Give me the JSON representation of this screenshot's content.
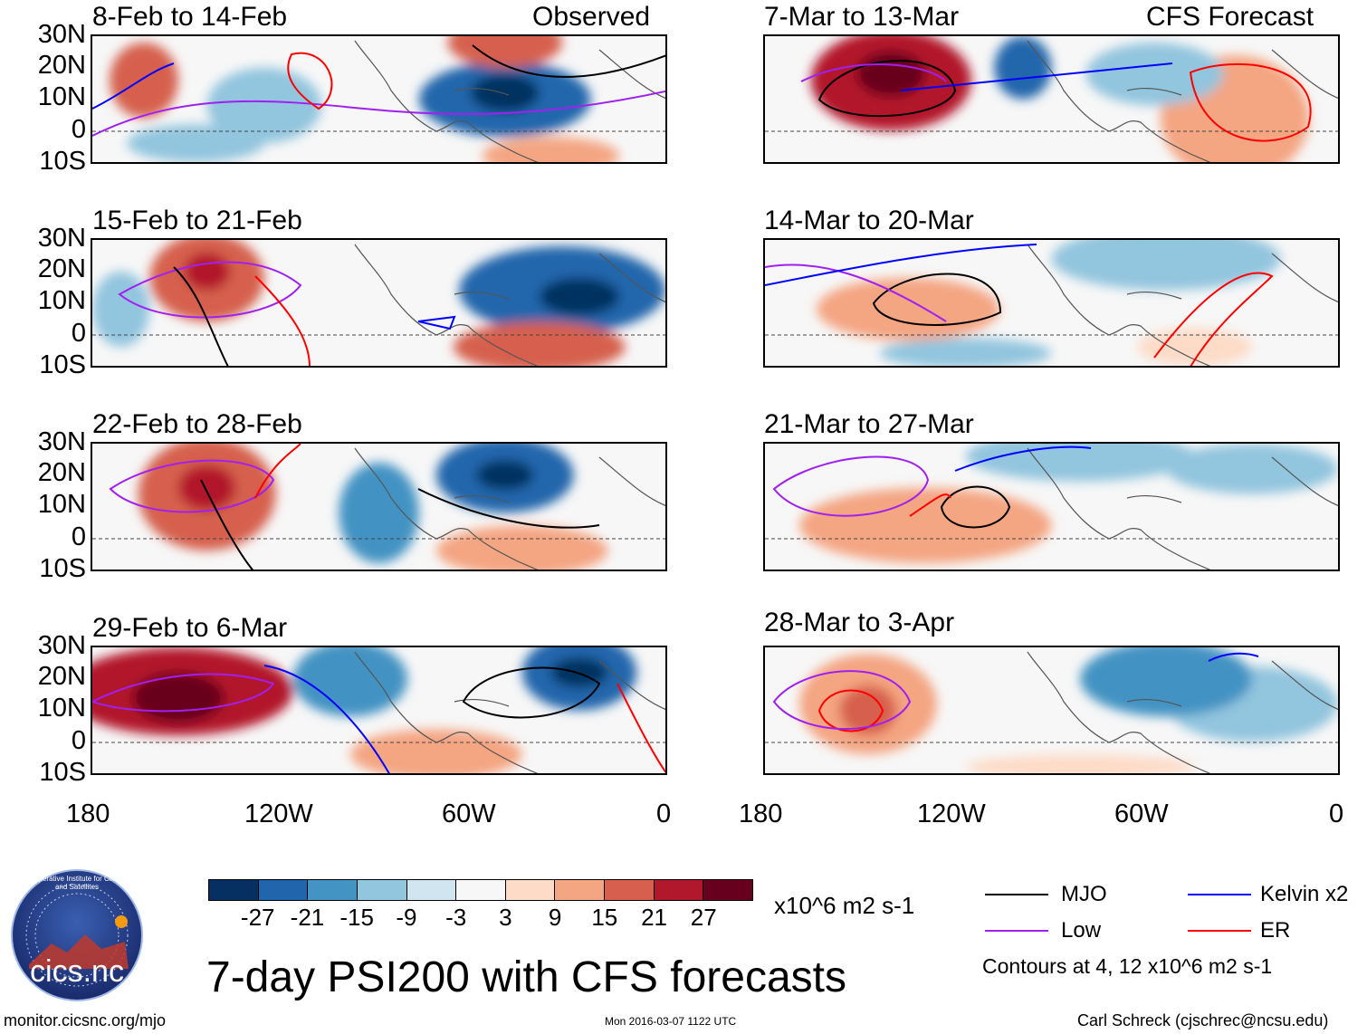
{
  "panels": [
    {
      "title": "8-Feb to 14-Feb",
      "tag": "Observed"
    },
    {
      "title": "7-Mar to 13-Mar",
      "tag": "CFS Forecast"
    },
    {
      "title": "15-Feb to 21-Feb",
      "tag": ""
    },
    {
      "title": "14-Mar to 20-Mar",
      "tag": ""
    },
    {
      "title": "22-Feb to 28-Feb",
      "tag": ""
    },
    {
      "title": "21-Mar to 27-Mar",
      "tag": ""
    },
    {
      "title": "29-Feb to 6-Mar",
      "tag": ""
    },
    {
      "title": "28-Mar to 3-Apr",
      "tag": ""
    }
  ],
  "lat_labels": [
    "30N",
    "20N",
    "10N",
    "0",
    "10S"
  ],
  "lon_labels": [
    "180",
    "120W",
    "60W",
    "0"
  ],
  "colorbar": {
    "colors": [
      "#053061",
      "#2166ac",
      "#4393c3",
      "#92c5de",
      "#d1e5f0",
      "#f7f7f7",
      "#fddbc7",
      "#f4a582",
      "#d6604d",
      "#b2182b",
      "#67001f"
    ],
    "labels": [
      "-27",
      "-21",
      "-15",
      "-9",
      "-3",
      "3",
      "9",
      "15",
      "21",
      "27"
    ],
    "units": "x10^6 m2 s-1"
  },
  "legend": {
    "items": [
      {
        "label": "MJO",
        "color": "#000000"
      },
      {
        "label": "Kelvin x2",
        "color": "#0000ff"
      },
      {
        "label": "Low",
        "color": "#a020f0"
      },
      {
        "label": "ER",
        "color": "#ff0000"
      }
    ],
    "contours_note": "Contours at 4, 12 x10^6 m2 s-1"
  },
  "logo_text": "cics.nc",
  "logo_ring_text": "Cooperative Institute for Climate and Satellites",
  "main_title": "7-day PSI200 with CFS forecasts",
  "footer": {
    "url": "monitor.cicsnc.org/mjo",
    "timestamp": "Mon 2016-03-07 1122 UTC",
    "author": "Carl Schreck (cjschrec@ncsu.edu)"
  }
}
